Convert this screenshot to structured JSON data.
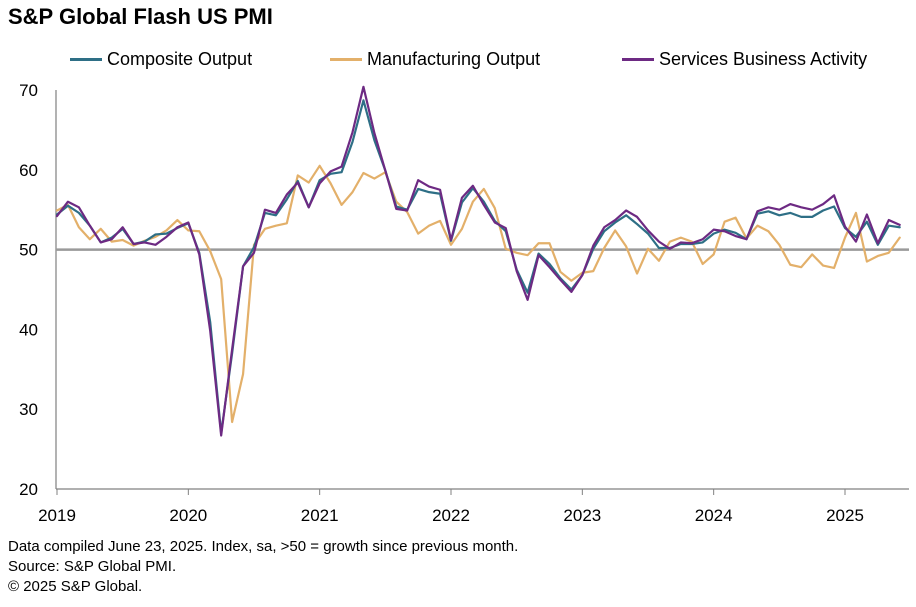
{
  "title": "S&P Global Flash US PMI",
  "footnotes": {
    "line1": "Data compiled June 23, 2025. Index, sa, >50 = growth since previous month.",
    "line2": "Source: S&P Global PMI.",
    "line3": "© 2025 S&P Global."
  },
  "chart_data": {
    "type": "line",
    "title": "S&P Global Flash US PMI",
    "xlabel": "",
    "ylabel": "",
    "ylim": [
      20,
      70
    ],
    "yticks": [
      "20",
      "30",
      "40",
      "50",
      "60",
      "70"
    ],
    "xticks": [
      "2019",
      "2020",
      "2021",
      "2022",
      "2023",
      "2024",
      "2025"
    ],
    "x_start": "2019-01",
    "x_end": "2025-06",
    "reference_line": 50,
    "grid": false,
    "legend_position": "top",
    "series": [
      {
        "name": "Composite Output",
        "color": "#2e6f86",
        "values": [
          54.4,
          55.5,
          54.6,
          53.0,
          50.9,
          51.5,
          52.6,
          50.7,
          51.0,
          51.9,
          52.0,
          52.7,
          53.3,
          49.6,
          40.9,
          27.0,
          37.0,
          47.9,
          50.3,
          54.6,
          54.3,
          56.3,
          58.6,
          55.3,
          58.7,
          59.5,
          59.7,
          63.5,
          68.7,
          63.7,
          59.9,
          55.4,
          55.0,
          57.6,
          57.2,
          57.0,
          51.1,
          55.9,
          57.7,
          56.0,
          53.6,
          52.3,
          47.5,
          44.6,
          49.5,
          48.2,
          46.4,
          45.0,
          46.8,
          50.1,
          52.3,
          53.4,
          54.3,
          53.2,
          52.0,
          50.2,
          50.2,
          50.7,
          50.7,
          50.9,
          52.0,
          52.5,
          52.1,
          51.3,
          54.5,
          54.8,
          54.3,
          54.6,
          54.1,
          54.1,
          54.9,
          55.4,
          52.7,
          51.6,
          53.5,
          50.6,
          53.0,
          52.8
        ]
      },
      {
        "name": "Manufacturing Output",
        "color": "#e3b06a",
        "values": [
          54.9,
          55.6,
          52.8,
          51.3,
          52.6,
          51.0,
          51.2,
          50.5,
          51.1,
          51.6,
          52.4,
          53.7,
          52.4,
          52.3,
          49.8,
          46.3,
          28.4,
          34.4,
          50.6,
          52.6,
          53.0,
          53.3,
          59.3,
          58.4,
          60.5,
          58.3,
          55.6,
          57.2,
          59.6,
          58.9,
          59.7,
          56.0,
          54.7,
          52.0,
          53.0,
          53.6,
          50.6,
          52.6,
          56.0,
          57.6,
          55.2,
          50.1,
          49.6,
          49.3,
          50.8,
          50.8,
          47.2,
          46.1,
          47.1,
          47.3,
          50.2,
          52.4,
          50.4,
          47.0,
          50.1,
          48.6,
          51.0,
          51.5,
          51.0,
          48.2,
          49.4,
          53.5,
          54.0,
          51.4,
          53.0,
          52.3,
          50.6,
          48.1,
          47.8,
          49.4,
          48.0,
          47.7,
          51.5,
          54.6,
          48.5,
          49.2,
          49.6,
          51.5
        ]
      },
      {
        "name": "Services Business Activity",
        "color": "#6d2a83",
        "values": [
          54.2,
          56.0,
          55.3,
          53.0,
          50.9,
          51.3,
          52.8,
          50.7,
          50.9,
          50.6,
          51.6,
          52.8,
          53.4,
          49.4,
          39.8,
          26.7,
          37.5,
          47.9,
          49.6,
          55.0,
          54.6,
          56.9,
          58.4,
          55.3,
          58.3,
          59.8,
          60.4,
          64.7,
          70.4,
          64.6,
          59.9,
          55.1,
          54.9,
          58.7,
          57.9,
          57.5,
          51.2,
          56.5,
          58.0,
          55.6,
          53.4,
          52.7,
          47.3,
          43.7,
          49.3,
          47.8,
          46.2,
          44.7,
          46.8,
          50.5,
          52.8,
          53.7,
          54.9,
          54.1,
          52.4,
          51.0,
          50.1,
          50.9,
          50.8,
          51.3,
          52.5,
          52.3,
          51.7,
          51.3,
          54.8,
          55.3,
          55.0,
          55.7,
          55.3,
          55.0,
          55.7,
          56.8,
          52.9,
          51.0,
          54.4,
          50.8,
          53.7,
          53.1
        ]
      }
    ]
  }
}
